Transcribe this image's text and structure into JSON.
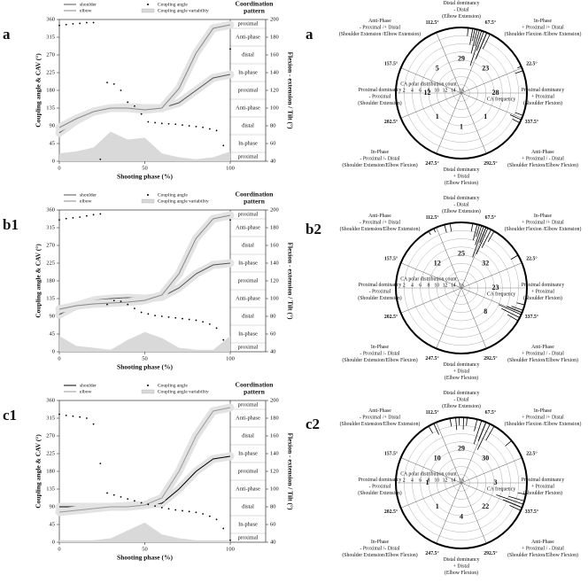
{
  "chart_data": [
    {
      "type": "line",
      "panel": "a",
      "x": [
        0,
        10,
        20,
        30,
        40,
        50,
        60,
        70,
        80,
        90,
        100
      ],
      "xlim": [
        0,
        100
      ],
      "xticks": [
        0,
        50,
        100
      ],
      "ylim": [
        0,
        360
      ],
      "yticks": [
        0,
        45,
        90,
        135,
        180,
        225,
        270,
        315,
        360
      ],
      "y2lim": [
        40,
        200
      ],
      "y2ticks": [
        40,
        60,
        80,
        100,
        120,
        140,
        160,
        180,
        200
      ],
      "xlabel": "Shooting phase (%)",
      "ylabel": "Coupling angle & CAV (°)",
      "y2label": "Flexion - extension / Tilt (°)",
      "pattern_title": [
        "Coordination",
        "pattern"
      ],
      "pattern_labels": [
        "proximal",
        "In-phase",
        "distal",
        "Anti-phase",
        "proximal",
        "In-phase",
        "distal",
        "Anti-phase",
        "proximal"
      ],
      "series": [
        {
          "name": "shoulder",
          "style": "line",
          "axis": "y2",
          "color": "#555555",
          "values": [
            72,
            86,
            96,
            100,
            101,
            100,
            100,
            106,
            120,
            134,
            138
          ]
        },
        {
          "name": "elbow",
          "style": "line",
          "axis": "y2",
          "color": "#888888",
          "values": [
            78,
            88,
            96,
            100,
            100,
            98,
            100,
            122,
            162,
            190,
            194
          ]
        },
        {
          "name": "Coupling angle",
          "style": "dots",
          "color": "#000000",
          "x": [
            0,
            4,
            8,
            12,
            16,
            20,
            24,
            28,
            32,
            36,
            40,
            44,
            48,
            52,
            56,
            60,
            64,
            68,
            72,
            76,
            80,
            84,
            88,
            92,
            96,
            100
          ],
          "values": [
            345,
            347,
            349,
            350,
            352,
            352,
            5,
            200,
            196,
            180,
            150,
            140,
            120,
            100,
            98,
            96,
            95,
            94,
            92,
            90,
            88,
            86,
            82,
            78,
            40,
            285
          ]
        },
        {
          "name": "Coupling angle variability",
          "style": "area",
          "color": "#d9d9d9",
          "values": [
            20,
            25,
            35,
            75,
            55,
            60,
            20,
            10,
            5,
            10,
            25
          ]
        }
      ]
    },
    {
      "type": "line",
      "panel": "b1",
      "x": [
        0,
        10,
        20,
        30,
        40,
        50,
        60,
        70,
        80,
        90,
        100
      ],
      "xlim": [
        0,
        100
      ],
      "xticks": [
        0,
        50,
        100
      ],
      "ylim": [
        0,
        360
      ],
      "yticks": [
        0,
        45,
        90,
        135,
        180,
        225,
        270,
        315,
        360
      ],
      "y2lim": [
        40,
        200
      ],
      "y2ticks": [
        40,
        60,
        80,
        100,
        120,
        140,
        160,
        180,
        200
      ],
      "xlabel": "Shooting phase (%)",
      "ylabel": "Coupling angle & CAV (°)",
      "y2label": "Flexion - extension / Tilt (°)",
      "pattern_title": [
        "Coordination",
        "pattern"
      ],
      "pattern_labels": [
        "proximal",
        "In-phase",
        "distal",
        "Anti-phase",
        "proximal",
        "In-phase",
        "distal",
        "Anti-phase",
        "proximal"
      ],
      "series": [
        {
          "name": "shoulder",
          "style": "line",
          "axis": "y2",
          "color": "#555555",
          "values": [
            82,
            92,
            98,
            100,
            101,
            100,
            102,
            112,
            128,
            138,
            140
          ]
        },
        {
          "name": "elbow",
          "style": "line",
          "axis": "y2",
          "color": "#888888",
          "values": [
            88,
            92,
            94,
            95,
            96,
            98,
            104,
            128,
            168,
            190,
            194
          ]
        },
        {
          "name": "Coupling angle",
          "style": "dots",
          "color": "#000000",
          "x": [
            0,
            4,
            8,
            12,
            16,
            20,
            24,
            28,
            32,
            36,
            40,
            44,
            48,
            52,
            56,
            60,
            64,
            68,
            72,
            76,
            80,
            84,
            88,
            92,
            96,
            100
          ],
          "values": [
            335,
            338,
            340,
            342,
            345,
            348,
            350,
            120,
            130,
            128,
            120,
            110,
            100,
            96,
            92,
            90,
            88,
            86,
            84,
            82,
            80,
            76,
            70,
            60,
            30,
            335
          ]
        },
        {
          "name": "Coupling angle variability",
          "style": "area",
          "color": "#d9d9d9",
          "values": [
            40,
            15,
            10,
            5,
            30,
            50,
            35,
            10,
            5,
            5,
            40
          ]
        }
      ]
    },
    {
      "type": "line",
      "panel": "c1",
      "x": [
        0,
        10,
        20,
        30,
        40,
        50,
        60,
        70,
        80,
        90,
        100
      ],
      "xlim": [
        0,
        100
      ],
      "xticks": [
        0,
        50,
        100
      ],
      "ylim": [
        0,
        360
      ],
      "yticks": [
        0,
        45,
        90,
        135,
        180,
        225,
        270,
        315,
        360
      ],
      "y2lim": [
        40,
        200
      ],
      "y2ticks": [
        40,
        60,
        80,
        100,
        120,
        140,
        160,
        180,
        200
      ],
      "xlabel": "Shooting phase (%)",
      "ylabel": "Coupling angle & CAV (°)",
      "y2label": "Flexion - extension / Tilt (°)",
      "pattern_title": [
        "Coordination",
        "pattern"
      ],
      "pattern_labels": [
        "proximal",
        "In-phase",
        "distal",
        "Anti-phase",
        "proximal",
        "In-phase",
        "distal",
        "Anti-phase",
        "proximal"
      ],
      "series": [
        {
          "name": "shoulder",
          "style": "line",
          "axis": "y2",
          "color": "#000000",
          "values": [
            80,
            80,
            80,
            80,
            81,
            82,
            84,
            100,
            120,
            134,
            137
          ]
        },
        {
          "name": "elbow",
          "style": "line",
          "axis": "y2",
          "color": "#999999",
          "values": [
            74,
            76,
            78,
            80,
            80,
            82,
            90,
            120,
            160,
            188,
            192
          ]
        },
        {
          "name": "Coupling angle",
          "style": "dots",
          "color": "#000000",
          "x": [
            0,
            4,
            8,
            12,
            16,
            20,
            24,
            28,
            32,
            36,
            40,
            44,
            48,
            52,
            56,
            60,
            64,
            68,
            72,
            76,
            80,
            84,
            88,
            92,
            96,
            100
          ],
          "values": [
            325,
            322,
            320,
            318,
            315,
            300,
            200,
            125,
            120,
            115,
            110,
            105,
            100,
            96,
            92,
            88,
            85,
            82,
            80,
            78,
            76,
            72,
            66,
            58,
            35,
            5
          ]
        },
        {
          "name": "Coupling angle variability",
          "style": "area",
          "color": "#d9d9d9",
          "values": [
            5,
            5,
            5,
            10,
            30,
            50,
            20,
            10,
            5,
            5,
            5
          ]
        }
      ]
    },
    {
      "type": "polar",
      "panel": "a",
      "angle_ticks": [
        {
          "value": 22.5,
          "label": "22.5°"
        },
        {
          "value": 67.5,
          "label": "67.5°"
        },
        {
          "value": 112.5,
          "label": "112.5°"
        },
        {
          "value": 157.5,
          "label": "157.5°"
        },
        {
          "value": 202.5,
          "label": "202.5°"
        },
        {
          "value": 247.5,
          "label": "247.5°"
        },
        {
          "value": 292.5,
          "label": "292.5°"
        },
        {
          "value": 337.5,
          "label": "337.5°"
        }
      ],
      "rlim": [
        0,
        16
      ],
      "rticks": [
        0,
        2,
        4,
        6,
        8,
        10,
        12,
        14,
        16
      ],
      "r_title": "CA polar distribution count",
      "freq_label": "CA frequency",
      "sector_counts": [
        28,
        23,
        29,
        5,
        12,
        1,
        1,
        1
      ],
      "regions": [
        [
          "Proximal dominancy",
          "+ Proximal",
          "(Shoulder Flexion)"
        ],
        [
          "In-Phase",
          "+ Proximal /+ Distal",
          "(Shoulder Flexion /Elbow Extension)"
        ],
        [
          "Distal dominancy",
          "- Distal",
          "(Elbow Extension)"
        ],
        [
          "Anti-Phase",
          "- Proximal /+ Distal",
          "(Shoulder Extension /Elbow Extension)"
        ],
        [
          "Proximal dominancy",
          "- Proximal",
          "(Shoulder Extension)"
        ],
        [
          "In-Phase",
          "- Proximal /- Distal",
          "(Shoulder Extension/Elbow Flexion)"
        ],
        [
          "Distal dominancy",
          "+ Distal",
          "(Elbow Flexion)"
        ],
        [
          "Anti-Phase",
          "+ Proximal / - Distal",
          "(Shoulder Flexion/Elbow Flexion)"
        ]
      ],
      "hist_angles": [
        20,
        24,
        64,
        67,
        70,
        72,
        74,
        76,
        78,
        80,
        84,
        333,
        336,
        340
      ],
      "hist_counts": [
        2,
        1,
        4,
        7,
        5,
        9,
        4,
        6,
        3,
        4,
        2,
        2,
        3,
        2
      ]
    },
    {
      "type": "polar",
      "panel": "b2",
      "angle_ticks": [
        {
          "value": 22.5,
          "label": "22.5°"
        },
        {
          "value": 67.5,
          "label": "67.5°"
        },
        {
          "value": 112.5,
          "label": "112.5°"
        },
        {
          "value": 157.5,
          "label": "157.5°"
        },
        {
          "value": 202.5,
          "label": "202.5°"
        },
        {
          "value": 247.5,
          "label": "247.5°"
        },
        {
          "value": 292.5,
          "label": "292.5°"
        },
        {
          "value": 337.5,
          "label": "337.5°"
        }
      ],
      "rlim": [
        0,
        16
      ],
      "rticks": [
        0,
        2,
        4,
        6,
        8,
        10,
        12,
        14,
        16
      ],
      "r_title": "CA polar distribution count",
      "freq_label": "CA frequency",
      "sector_counts": [
        23,
        32,
        25,
        12,
        null,
        null,
        null,
        8
      ],
      "regions": [
        [
          "Proximal dominancy",
          "+ Proximal",
          "(Shoulder Flexion)"
        ],
        [
          "In-Phase",
          "+ Proximal /+ Distal",
          "(Shoulder Flexion /Elbow Extension)"
        ],
        [
          "Distal dominancy",
          "- Distal",
          "(Elbow Extension)"
        ],
        [
          "Anti-Phase",
          "- Proximal /+ Distal",
          "(Shoulder Extension/Elbow Extension)"
        ],
        [
          "Proximal dominancy",
          "- Proximal",
          "(Shoulder Extension)"
        ],
        [
          "In-Phase",
          "- Proximal /- Distal",
          "(Shoulder Extension/Elbow Flexion)"
        ],
        [
          "Distal dominancy",
          "+ Distal",
          "(Elbow Flexion)"
        ],
        [
          "Anti-Phase",
          "+ Proximal / - Distal",
          "(Shoulder Flexion/Elbow Flexion)"
        ]
      ],
      "hist_angles": [
        30,
        60,
        63,
        66,
        68,
        70,
        72,
        74,
        76,
        80,
        100,
        105,
        115,
        120,
        330,
        333,
        336,
        338,
        340,
        345
      ],
      "hist_counts": [
        2,
        3,
        5,
        7,
        4,
        8,
        5,
        3,
        4,
        2,
        2,
        2,
        1,
        1,
        3,
        5,
        6,
        4,
        3,
        2
      ]
    },
    {
      "type": "polar",
      "panel": "c2",
      "angle_ticks": [
        {
          "value": 22.5,
          "label": "22.5°"
        },
        {
          "value": 67.5,
          "label": "67.5°"
        },
        {
          "value": 112.5,
          "label": "112.5°"
        },
        {
          "value": 157.5,
          "label": "157.5°"
        },
        {
          "value": 202.5,
          "label": "202.5°"
        },
        {
          "value": 247.5,
          "label": "247.5°"
        },
        {
          "value": 292.5,
          "label": "292.5°"
        },
        {
          "value": 337.5,
          "label": "337.5°"
        }
      ],
      "rlim": [
        0,
        16
      ],
      "rticks": [
        0,
        2,
        4,
        6,
        8,
        10,
        12,
        14,
        16
      ],
      "r_title": "CA polar distribution count",
      "freq_label": "CA frequency",
      "sector_counts": [
        3,
        30,
        29,
        10,
        1,
        1,
        4,
        22
      ],
      "regions": [
        [
          "Proximal dominancy",
          "+ Proximal",
          "(Shoulder Flexion)"
        ],
        [
          "In-Phase",
          "+ Proximal /+ Distal",
          "(Shoulder Flexion /Elbow Extension)"
        ],
        [
          "Distal dominancy",
          "- Distal",
          "(Elbow Extension)"
        ],
        [
          "Anti-Phase",
          "- Proximal /+ Distal",
          "(Shoulder Extension/Elbow Extension)"
        ],
        [
          "Proximal dominancy",
          "- Proximal",
          "(Shoulder Extension)"
        ],
        [
          "In-Phase",
          "- Proximal /- Distal",
          "(Shoulder Extension/Elbow Flexion)"
        ],
        [
          "Distal dominancy",
          "+ Distal",
          "(Elbow Flexion)"
        ],
        [
          "Anti-Phase",
          "+ Proximal / - Distal",
          "(Shoulder Flexion/Elbow Flexion)"
        ]
      ],
      "hist_angles": [
        40,
        60,
        64,
        68,
        72,
        76,
        85,
        88,
        92,
        95,
        100,
        115,
        120,
        335,
        338,
        341,
        344,
        350
      ],
      "hist_counts": [
        2,
        4,
        7,
        5,
        6,
        3,
        2,
        3,
        2,
        3,
        2,
        3,
        2,
        3,
        5,
        7,
        4,
        2
      ]
    }
  ]
}
